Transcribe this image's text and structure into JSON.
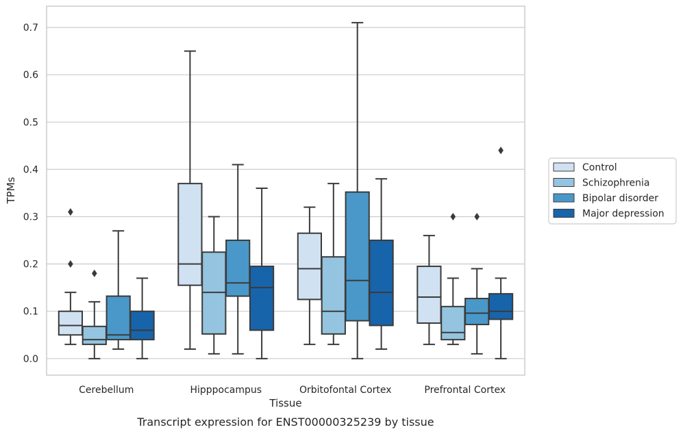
{
  "chart_data": {
    "type": "boxplot",
    "caption": "Transcript expression for ENST00000325239 by tissue",
    "xlabel": "Tissue",
    "ylabel": "TPMs",
    "ylim": [
      -0.035,
      0.745
    ],
    "yticks": [
      "0.0",
      "0.1",
      "0.2",
      "0.3",
      "0.4",
      "0.5",
      "0.6",
      "0.7"
    ],
    "grid": true,
    "legend_position": "right",
    "categories": [
      "Cerebellum",
      "Hipppocampus",
      "Orbitofontal Cortex",
      "Prefrontal Cortex"
    ],
    "series": [
      {
        "name": "Control",
        "color": "#d0e1f2",
        "boxes": [
          {
            "whislo": 0.03,
            "q1": 0.05,
            "med": 0.07,
            "q3": 0.1,
            "whishi": 0.14,
            "fliers": [
              0.2,
              0.31
            ]
          },
          {
            "whislo": 0.02,
            "q1": 0.155,
            "med": 0.2,
            "q3": 0.37,
            "whishi": 0.65,
            "fliers": []
          },
          {
            "whislo": 0.03,
            "q1": 0.125,
            "med": 0.19,
            "q3": 0.265,
            "whishi": 0.32,
            "fliers": []
          },
          {
            "whislo": 0.03,
            "q1": 0.075,
            "med": 0.13,
            "q3": 0.195,
            "whishi": 0.26,
            "fliers": []
          }
        ]
      },
      {
        "name": "Schizophrenia",
        "color": "#94c4df",
        "boxes": [
          {
            "whislo": 0.0,
            "q1": 0.03,
            "med": 0.04,
            "q3": 0.068,
            "whishi": 0.12,
            "fliers": [
              0.18
            ]
          },
          {
            "whislo": 0.01,
            "q1": 0.052,
            "med": 0.14,
            "q3": 0.225,
            "whishi": 0.3,
            "fliers": []
          },
          {
            "whislo": 0.03,
            "q1": 0.052,
            "med": 0.1,
            "q3": 0.215,
            "whishi": 0.37,
            "fliers": []
          },
          {
            "whislo": 0.03,
            "q1": 0.04,
            "med": 0.055,
            "q3": 0.11,
            "whishi": 0.17,
            "fliers": [
              0.3
            ]
          }
        ]
      },
      {
        "name": "Bipolar disorder",
        "color": "#4a98c9",
        "boxes": [
          {
            "whislo": 0.02,
            "q1": 0.04,
            "med": 0.05,
            "q3": 0.132,
            "whishi": 0.27,
            "fliers": []
          },
          {
            "whislo": 0.01,
            "q1": 0.132,
            "med": 0.16,
            "q3": 0.25,
            "whishi": 0.41,
            "fliers": []
          },
          {
            "whislo": 0.0,
            "q1": 0.08,
            "med": 0.165,
            "q3": 0.352,
            "whishi": 0.71,
            "fliers": []
          },
          {
            "whislo": 0.01,
            "q1": 0.072,
            "med": 0.096,
            "q3": 0.127,
            "whishi": 0.19,
            "fliers": [
              0.3
            ]
          }
        ]
      },
      {
        "name": "Major depression",
        "color": "#1764ab",
        "boxes": [
          {
            "whislo": 0.0,
            "q1": 0.04,
            "med": 0.06,
            "q3": 0.1,
            "whishi": 0.17,
            "fliers": []
          },
          {
            "whislo": 0.0,
            "q1": 0.06,
            "med": 0.15,
            "q3": 0.195,
            "whishi": 0.36,
            "fliers": []
          },
          {
            "whislo": 0.02,
            "q1": 0.07,
            "med": 0.14,
            "q3": 0.25,
            "whishi": 0.38,
            "fliers": []
          },
          {
            "whislo": 0.0,
            "q1": 0.083,
            "med": 0.1,
            "q3": 0.137,
            "whishi": 0.17,
            "fliers": [
              0.44
            ]
          }
        ]
      }
    ]
  }
}
